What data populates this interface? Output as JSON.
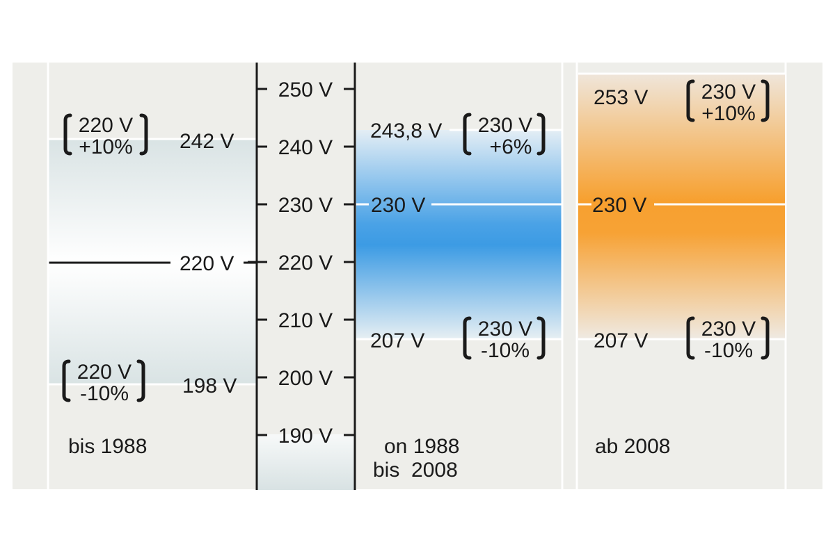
{
  "scale": {
    "ticks": [
      "250 V",
      "240 V",
      "230 V",
      "220 V",
      "210 V",
      "200 V",
      "190 V"
    ]
  },
  "periods": [
    {
      "caption": "bis 1988",
      "nominal_label": "220 V",
      "upper": {
        "value_label": "242 V",
        "bracket_line1": "220 V",
        "bracket_line2": "+10%"
      },
      "lower": {
        "value_label": "198 V",
        "bracket_line1": "220 V",
        "bracket_line2": "-10%"
      }
    },
    {
      "caption_line1": "on 1988",
      "caption_line2": "bis  2008",
      "nominal_label": "230 V",
      "upper": {
        "value_label": "243,8 V",
        "bracket_line1": "230 V",
        "bracket_line2": "+6%"
      },
      "lower": {
        "value_label": "207 V",
        "bracket_line1": "230 V",
        "bracket_line2": "-10%"
      }
    },
    {
      "caption": "ab 2008",
      "nominal_label": "230 V",
      "upper": {
        "value_label": "253 V",
        "bracket_line1": "230 V",
        "bracket_line2": "+10%"
      },
      "lower": {
        "value_label": "207 V",
        "bracket_line1": "230 V",
        "bracket_line2": "-10%"
      }
    }
  ],
  "colors": {
    "panel_bg": "#eeeeea",
    "blue_band": "#3f9fe6",
    "orange_band": "#f7a02f",
    "grey_band": "#dde5e6"
  }
}
